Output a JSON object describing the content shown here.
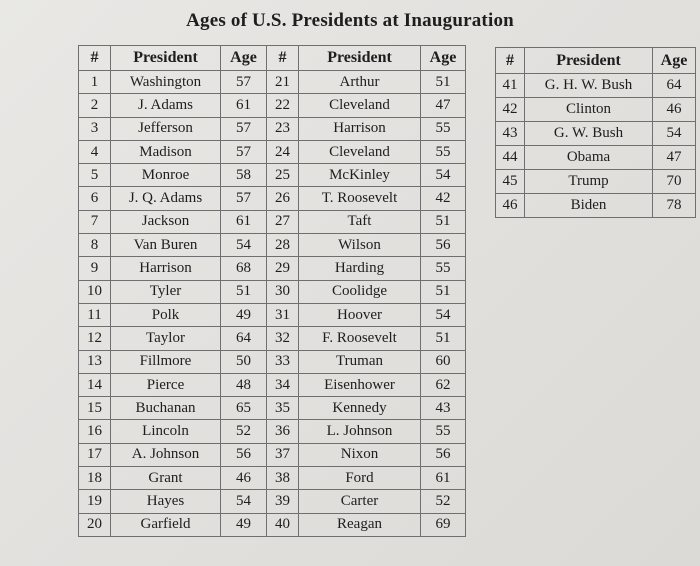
{
  "title": "Ages of U.S. Presidents at Inauguration",
  "headers": {
    "num": "#",
    "president": "President",
    "age": "Age"
  },
  "left_rows": [
    [
      "1",
      "Washington",
      "57",
      "21",
      "Arthur",
      "51"
    ],
    [
      "2",
      "J. Adams",
      "61",
      "22",
      "Cleveland",
      "47"
    ],
    [
      "3",
      "Jefferson",
      "57",
      "23",
      "Harrison",
      "55"
    ],
    [
      "4",
      "Madison",
      "57",
      "24",
      "Cleveland",
      "55"
    ],
    [
      "5",
      "Monroe",
      "58",
      "25",
      "McKinley",
      "54"
    ],
    [
      "6",
      "J. Q. Adams",
      "57",
      "26",
      "T. Roosevelt",
      "42"
    ],
    [
      "7",
      "Jackson",
      "61",
      "27",
      "Taft",
      "51"
    ],
    [
      "8",
      "Van Buren",
      "54",
      "28",
      "Wilson",
      "56"
    ],
    [
      "9",
      "Harrison",
      "68",
      "29",
      "Harding",
      "55"
    ],
    [
      "10",
      "Tyler",
      "51",
      "30",
      "Coolidge",
      "51"
    ],
    [
      "11",
      "Polk",
      "49",
      "31",
      "Hoover",
      "54"
    ],
    [
      "12",
      "Taylor",
      "64",
      "32",
      "F. Roosevelt",
      "51"
    ],
    [
      "13",
      "Fillmore",
      "50",
      "33",
      "Truman",
      "60"
    ],
    [
      "14",
      "Pierce",
      "48",
      "34",
      "Eisenhower",
      "62"
    ],
    [
      "15",
      "Buchanan",
      "65",
      "35",
      "Kennedy",
      "43"
    ],
    [
      "16",
      "Lincoln",
      "52",
      "36",
      "L. Johnson",
      "55"
    ],
    [
      "17",
      "A. Johnson",
      "56",
      "37",
      "Nixon",
      "56"
    ],
    [
      "18",
      "Grant",
      "46",
      "38",
      "Ford",
      "61"
    ],
    [
      "19",
      "Hayes",
      "54",
      "39",
      "Carter",
      "52"
    ],
    [
      "20",
      "Garfield",
      "49",
      "40",
      "Reagan",
      "69"
    ]
  ],
  "right_rows": [
    [
      "41",
      "G. H. W. Bush",
      "64"
    ],
    [
      "42",
      "Clinton",
      "46"
    ],
    [
      "43",
      "G. W. Bush",
      "54"
    ],
    [
      "44",
      "Obama",
      "47"
    ],
    [
      "45",
      "Trump",
      "70"
    ],
    [
      "46",
      "Biden",
      "78"
    ]
  ]
}
